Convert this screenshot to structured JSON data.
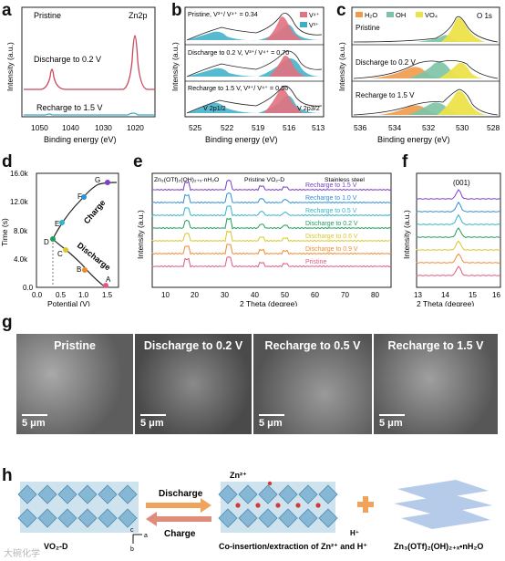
{
  "panel_labels": {
    "a": "a",
    "b": "b",
    "c": "c",
    "d": "d",
    "e": "e",
    "f": "f",
    "g": "g",
    "h": "h"
  },
  "colors": {
    "red": "#c8475a",
    "teal": "#3aaec6",
    "pink": "#e3717f",
    "orange": "#f29a49",
    "green": "#7cc4a6",
    "yellow": "#ece24a",
    "purple": "#7b3fc8"
  },
  "panel_a": {
    "corner_left": "Pristine",
    "corner_right": "Zn2p",
    "curve1": "Discharge to 0.2 V",
    "curve2": "Recharge to 1.5 V",
    "ylabel": "Intensity (a.u.)",
    "xlabel": "Binding energy (eV)",
    "ticks": [
      "1050",
      "1040",
      "1030",
      "1020"
    ]
  },
  "panel_b": {
    "rows": [
      {
        "label": "Pristine, V³⁺/ V⁴⁺ = 0.34"
      },
      {
        "label": "Discharge to 0.2 V, V³⁺/ V⁴⁺ = 0.70"
      },
      {
        "label": "Recharge to 1.5 V, V³⁺/ V⁴⁺ = 0.36"
      }
    ],
    "legend": [
      "V⁴⁺",
      "V³⁺"
    ],
    "peak1": "V 2p1/2",
    "peak2": "V 2p3/2",
    "ylabel": "Intensity (a.u.)",
    "xlabel": "Binding energy (eV)",
    "ticks": [
      "525",
      "522",
      "519",
      "516",
      "513"
    ]
  },
  "panel_c": {
    "legend": [
      "H₂O",
      "OH",
      "VO₄"
    ],
    "title": "O 1s",
    "rows": [
      "Pristine",
      "Discharge to 0.2 V",
      "Recharge to 1.5 V"
    ],
    "ylabel": "Intensity (a.u.)",
    "xlabel": "Binding energy (eV)",
    "ticks": [
      "536",
      "534",
      "532",
      "530",
      "528"
    ]
  },
  "panel_d": {
    "ylabel": "Time (s)",
    "xlabel": "Potential (V)",
    "yticks": [
      "16.0k",
      "12.0k",
      "8.0k",
      "4.0k",
      "0.0"
    ],
    "xticks": [
      "0.0",
      "0.5",
      "1.0",
      "1.5"
    ],
    "charge": "Charge",
    "discharge": "Discharge",
    "points": [
      "A",
      "B",
      "C",
      "D",
      "E",
      "F",
      "G"
    ]
  },
  "panel_e": {
    "legend": [
      "Zn₃(OTf)₂(OH)₂₊ₓ·nH₂O",
      "Pristine VO₂-D",
      "Stainless steel"
    ],
    "traces": [
      {
        "label": "Recharge to 1.5 V",
        "color": "#7b3fc8"
      },
      {
        "label": "Recharge to 1.0 V",
        "color": "#2d8fd6"
      },
      {
        "label": "Recharge to 0.5 V",
        "color": "#33b3c9"
      },
      {
        "label": "Discharge to 0.2 V",
        "color": "#1f9e5a"
      },
      {
        "label": "Discharge to 0.6 V",
        "color": "#d9c82b"
      },
      {
        "label": "Discharge to 0.9 V",
        "color": "#f08a2e"
      },
      {
        "label": "Pristine",
        "color": "#e0587e"
      }
    ],
    "ylabel": "Intensity (a.u.)",
    "xlabel": "2 Theta (degree)",
    "ticks": [
      "10",
      "20",
      "30",
      "40",
      "50",
      "60",
      "70",
      "80"
    ]
  },
  "panel_f": {
    "annotation": "(001)",
    "ylabel": "Intensity (a.u.)",
    "xlabel": "2 Theta (degree)",
    "ticks": [
      "13",
      "14",
      "15",
      "16"
    ]
  },
  "panel_g": {
    "images": [
      {
        "title": "Pristine",
        "scale": "5 μm"
      },
      {
        "title": "Discharge to 0.2 V",
        "scale": "5 μm"
      },
      {
        "title": "Recharge to 0.5 V",
        "scale": "5 μm"
      },
      {
        "title": "Recharge to 1.5 V",
        "scale": "5 μm"
      }
    ]
  },
  "panel_h": {
    "left_label": "VO₂-D",
    "discharge": "Discharge",
    "charge": "Charge",
    "zn_ion": "Zn²⁺",
    "h_ion": "H⁺",
    "caption": "Co-insertion/extraction of Zn²⁺ and H⁺",
    "product": "Zn₃(OTf)₂(OH)₂₊ₓ•nH₂O",
    "axis_c": "c",
    "axis_a": "a",
    "axis_b": "b"
  },
  "watermark": "大碗化学"
}
